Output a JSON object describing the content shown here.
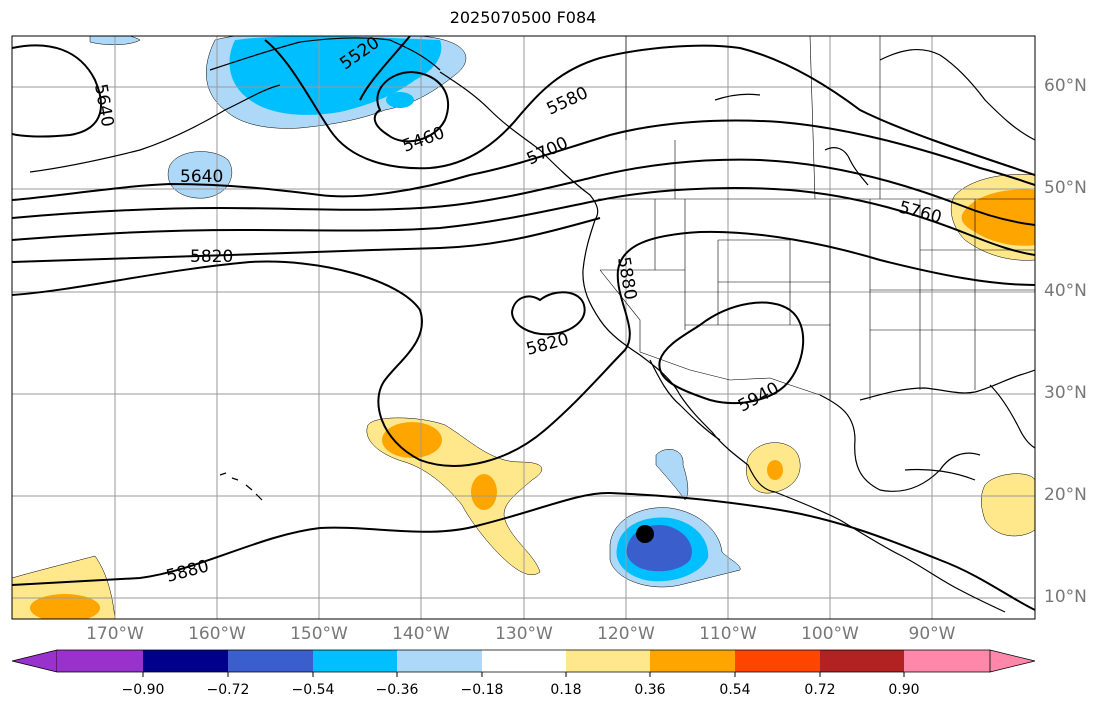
{
  "title": "2025070500 F084",
  "contour_labels": [
    "5520",
    "5580",
    "5640",
    "5460",
    "5700",
    "5640",
    "5760",
    "5820",
    "5880",
    "5820",
    "5940",
    "5880"
  ],
  "lat_labels": [
    "60°N",
    "50°N",
    "40°N",
    "30°N",
    "20°N",
    "10°N"
  ],
  "lon_labels": [
    "170°W",
    "160°W",
    "150°W",
    "140°W",
    "130°W",
    "120°W",
    "110°W",
    "100°W",
    "90°W"
  ],
  "colorbar": {
    "ticks": [
      "−0.90",
      "−0.72",
      "−0.54",
      "−0.36",
      "−0.18",
      "0.18",
      "0.36",
      "0.54",
      "0.72",
      "0.90"
    ],
    "colors": [
      "#9932cc",
      "#00008b",
      "#3a5fcd",
      "#00bfff",
      "#add8f8",
      "#ffffff",
      "#ffe88c",
      "#ffa500",
      "#ff4500",
      "#b22222",
      "#ff88aa"
    ]
  },
  "marker": {
    "lon": "118°W",
    "lat": "16°N"
  }
}
